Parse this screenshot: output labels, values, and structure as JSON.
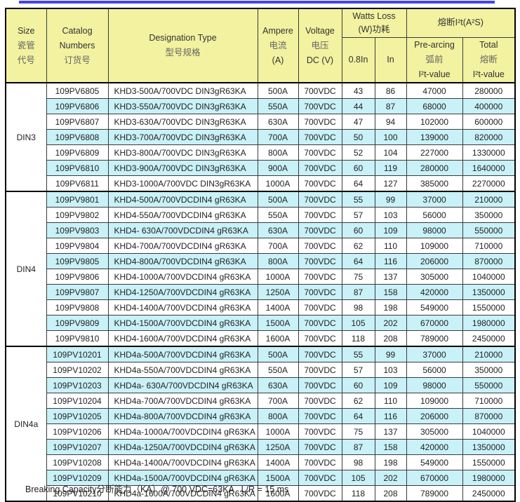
{
  "page": {
    "top_rule_color": "#4545e6",
    "footer_note": "Breaking Capacity分断能力（KA）@ 700 VDC=63KA   L/R = 15 ms"
  },
  "colors": {
    "header_bg": "#f2f2a0",
    "stripe_bg": "#c9f1f8",
    "border": "#3a3a3a",
    "top_rule": "#4545e6"
  },
  "table": {
    "headers": {
      "size": [
        "Size",
        "瓷管",
        "代号"
      ],
      "catalog": [
        "Catalog",
        "Numbers",
        "订货号"
      ],
      "designation": [
        "Designation Type",
        "型号规格"
      ],
      "ampere": [
        "Ampere",
        "电流",
        "(A)"
      ],
      "voltage": [
        "Voltage",
        "电压",
        "DC (V)"
      ],
      "watts_loss_group": [
        "Watts Loss",
        "(W)功耗"
      ],
      "watts_08in": "0.8In",
      "watts_in": "In",
      "i2t_group": "熔断I²t(A²S)",
      "prearcing": [
        "Pre-arcing",
        "弧前",
        "I²t-value"
      ],
      "total": [
        "Total",
        "熔断",
        "I²t-value"
      ]
    },
    "sections": [
      {
        "size": "DIN3",
        "rows": [
          {
            "catalog": "109PV6805",
            "designation": "KHD3-500A/700VDC DIN3gR63KA",
            "ampere": "500A",
            "voltage": "700VDC",
            "watts_08in": "43",
            "watts_in": "86",
            "prearcing_i2t": "47000",
            "total_i2t": "280000",
            "striped": false
          },
          {
            "catalog": "109PV6806",
            "designation": "KHD3-550A/700VDC DIN3gR63KA",
            "ampere": "550A",
            "voltage": "700VDC",
            "watts_08in": "44",
            "watts_in": "87",
            "prearcing_i2t": "68000",
            "total_i2t": "400000",
            "striped": true
          },
          {
            "catalog": "109PV6807",
            "designation": "KHD3-630A/700VDC DIN3gR63KA",
            "ampere": "630A",
            "voltage": "700VDC",
            "watts_08in": "47",
            "watts_in": "94",
            "prearcing_i2t": "102000",
            "total_i2t": "600000",
            "striped": false
          },
          {
            "catalog": "109PV6808",
            "designation": "KHD3-700A/700VDC DIN3gR63KA",
            "ampere": "700A",
            "voltage": "700VDC",
            "watts_08in": "50",
            "watts_in": "100",
            "prearcing_i2t": "139000",
            "total_i2t": "820000",
            "striped": true
          },
          {
            "catalog": "109PV6809",
            "designation": "KHD3-800A/700VDC DIN3gR63KA",
            "ampere": "800A",
            "voltage": "700VDC",
            "watts_08in": "52",
            "watts_in": "104",
            "prearcing_i2t": "227000",
            "total_i2t": "1330000",
            "striped": false
          },
          {
            "catalog": "109PV6810",
            "designation": "KHD3-900A/700VDC DIN3gR63KA",
            "ampere": "900A",
            "voltage": "700VDC",
            "watts_08in": "60",
            "watts_in": "119",
            "prearcing_i2t": "280000",
            "total_i2t": "1640000",
            "striped": true
          },
          {
            "catalog": "109PV6811",
            "designation": "KHD3-1000A/700VDC DIN3gR63KA",
            "ampere": "1000A",
            "voltage": "700VDC",
            "watts_08in": "64",
            "watts_in": "127",
            "prearcing_i2t": "385000",
            "total_i2t": "2270000",
            "striped": false
          }
        ]
      },
      {
        "size": "DIN4",
        "rows": [
          {
            "catalog": "109PV9801",
            "designation": "KHD4-500A/700VDCDIN4 gR63KA",
            "ampere": "500A",
            "voltage": "700VDC",
            "watts_08in": "55",
            "watts_in": "99",
            "prearcing_i2t": "37000",
            "total_i2t": "210000",
            "striped": true
          },
          {
            "catalog": "109PV9802",
            "designation": "KHD4-550A/700VDCDIN4 gR63KA",
            "ampere": "550A",
            "voltage": "700VDC",
            "watts_08in": "57",
            "watts_in": "103",
            "prearcing_i2t": "56000",
            "total_i2t": "350000",
            "striped": false
          },
          {
            "catalog": "109PV9803",
            "designation": "KHD4- 630A/700VDCDIN4 gR63KA",
            "ampere": "630A",
            "voltage": "700VDC",
            "watts_08in": "60",
            "watts_in": "109",
            "prearcing_i2t": "98000",
            "total_i2t": "550000",
            "striped": true
          },
          {
            "catalog": "109PV9804",
            "designation": "KHD4-700A/700VDCDIN4 gR63KA",
            "ampere": "700A",
            "voltage": "700VDC",
            "watts_08in": "62",
            "watts_in": "110",
            "prearcing_i2t": "109000",
            "total_i2t": "710000",
            "striped": false
          },
          {
            "catalog": "109PV9805",
            "designation": "KHD4-800A/700VDCDIN4 gR63KA",
            "ampere": "800A",
            "voltage": "700VDC",
            "watts_08in": "64",
            "watts_in": "116",
            "prearcing_i2t": "206000",
            "total_i2t": "870000",
            "striped": true
          },
          {
            "catalog": "109PV9806",
            "designation": "KHD4-1000A/700VDCDIN4 gR63KA",
            "ampere": "1000A",
            "voltage": "700VDC",
            "watts_08in": "75",
            "watts_in": "137",
            "prearcing_i2t": "305000",
            "total_i2t": "1040000",
            "striped": false
          },
          {
            "catalog": "109PV9807",
            "designation": "KHD4-1250A/700VDCDIN4 gR63KA",
            "ampere": "1250A",
            "voltage": "700VDC",
            "watts_08in": "87",
            "watts_in": "158",
            "prearcing_i2t": "420000",
            "total_i2t": "1350000",
            "striped": true
          },
          {
            "catalog": "109PV9808",
            "designation": "KHD4-1400A/700VDCDIN4 gR63KA",
            "ampere": "1400A",
            "voltage": "700VDC",
            "watts_08in": "98",
            "watts_in": "198",
            "prearcing_i2t": "549000",
            "total_i2t": "1550000",
            "striped": false
          },
          {
            "catalog": "109PV9809",
            "designation": "KHD4-1500A/700VDCDIN4 gR63KA",
            "ampere": "1500A",
            "voltage": "700VDC",
            "watts_08in": "105",
            "watts_in": "202",
            "prearcing_i2t": "670000",
            "total_i2t": "1980000",
            "striped": true
          },
          {
            "catalog": "109PV9810",
            "designation": "KHD4-1600A/700VDCDIN4 gR63KA",
            "ampere": "1600A",
            "voltage": "700VDC",
            "watts_08in": "118",
            "watts_in": "208",
            "prearcing_i2t": "789000",
            "total_i2t": "2450000",
            "striped": false
          }
        ]
      },
      {
        "size": "DIN4a",
        "rows": [
          {
            "catalog": "109PV10201",
            "designation": "KHD4a-500A/700VDCDIN4 gR63KA",
            "ampere": "500A",
            "voltage": "700VDC",
            "watts_08in": "55",
            "watts_in": "99",
            "prearcing_i2t": "37000",
            "total_i2t": "210000",
            "striped": true
          },
          {
            "catalog": "109PV10202",
            "designation": "KHD4a-550A/700VDCDIN4 gR63KA",
            "ampere": "550A",
            "voltage": "700VDC",
            "watts_08in": "57",
            "watts_in": "103",
            "prearcing_i2t": "56000",
            "total_i2t": "350000",
            "striped": false
          },
          {
            "catalog": "109PV10203",
            "designation": "KHD4a- 630A/700VDCDIN4 gR63KA",
            "ampere": "630A",
            "voltage": "700VDC",
            "watts_08in": "60",
            "watts_in": "109",
            "prearcing_i2t": "98000",
            "total_i2t": "550000",
            "striped": true
          },
          {
            "catalog": "109PV10204",
            "designation": "KHD4a-700A/700VDCDIN4 gR63KA",
            "ampere": "700A",
            "voltage": "700VDC",
            "watts_08in": "62",
            "watts_in": "110",
            "prearcing_i2t": "109000",
            "total_i2t": "710000",
            "striped": false
          },
          {
            "catalog": "109PV10205",
            "designation": "KHD4a-800A/700VDCDIN4 gR63KA",
            "ampere": "800A",
            "voltage": "700VDC",
            "watts_08in": "64",
            "watts_in": "116",
            "prearcing_i2t": "206000",
            "total_i2t": "870000",
            "striped": true
          },
          {
            "catalog": "109PV10206",
            "designation": "KHD4a-1000A/700VDCDIN4 gR63KA",
            "ampere": "1000A",
            "voltage": "700VDC",
            "watts_08in": "75",
            "watts_in": "137",
            "prearcing_i2t": "305000",
            "total_i2t": "1040000",
            "striped": false
          },
          {
            "catalog": "109PV10207",
            "designation": "KHD4a-1250A/700VDCDIN4 gR63KA",
            "ampere": "1250A",
            "voltage": "700VDC",
            "watts_08in": "87",
            "watts_in": "158",
            "prearcing_i2t": "420000",
            "total_i2t": "1350000",
            "striped": true
          },
          {
            "catalog": "109PV10208",
            "designation": "KHD4a-1400A/700VDCDIN4 gR63KA",
            "ampere": "1400A",
            "voltage": "700VDC",
            "watts_08in": "98",
            "watts_in": "198",
            "prearcing_i2t": "549000",
            "total_i2t": "1550000",
            "striped": false
          },
          {
            "catalog": "109PV10209",
            "designation": "KHD4a-1500A/700VDCDIN4 gR63KA",
            "ampere": "1500A",
            "voltage": "700VDC",
            "watts_08in": "105",
            "watts_in": "202",
            "prearcing_i2t": "670000",
            "total_i2t": "1980000",
            "striped": true
          },
          {
            "catalog": "109PV10210",
            "designation": "KHD4a-1600A/700VDCDIN4 gR63KA",
            "ampere": "1600A",
            "voltage": "700VDC",
            "watts_08in": "118",
            "watts_in": "208",
            "prearcing_i2t": "789000",
            "total_i2t": "2450000",
            "striped": false
          }
        ]
      }
    ]
  }
}
